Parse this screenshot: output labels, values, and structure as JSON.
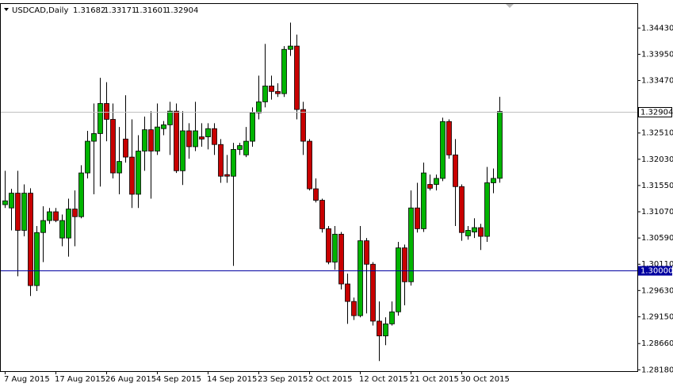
{
  "chart_data": {
    "type": "candlestick",
    "title": "USDCAD,Daily",
    "categories": [
      "7 Aug 2015",
      null,
      null,
      null,
      null,
      null,
      null,
      null,
      "17 Aug 2015",
      null,
      null,
      null,
      null,
      null,
      null,
      null,
      "26 Aug 2015",
      null,
      null,
      null,
      null,
      null,
      null,
      null,
      "4 Sep 2015",
      null,
      null,
      null,
      null,
      null,
      null,
      null,
      "14 Sep 2015",
      null,
      null,
      null,
      null,
      null,
      null,
      null,
      "23 Sep 2015",
      null,
      null,
      null,
      null,
      null,
      null,
      null,
      "2 Oct 2015",
      null,
      null,
      null,
      null,
      null,
      null,
      null,
      "12 Oct 2015",
      null,
      null,
      null,
      null,
      null,
      null,
      null,
      "21 Oct 2015",
      null,
      null,
      null,
      null,
      null,
      null,
      null,
      "30 Oct 2015",
      null,
      null,
      null,
      null,
      null,
      null
    ],
    "open": [
      1.312,
      1.3114,
      1.3141,
      1.3073,
      1.3141,
      1.2972,
      1.3069,
      1.3091,
      1.3107,
      1.3059,
      1.3059,
      1.3112,
      1.3098,
      1.3178,
      1.3236,
      1.325,
      1.3305,
      1.3276,
      1.3178,
      1.324,
      1.3207,
      1.3139,
      1.3218,
      1.3257,
      1.3218,
      1.3259,
      1.3266,
      1.3291,
      1.3182,
      1.3255,
      1.3226,
      1.3244,
      1.3244,
      1.3259,
      1.323,
      1.3175,
      1.3172,
      1.3221,
      1.3211,
      1.3236,
      1.3288,
      1.3308,
      1.3337,
      1.3327,
      1.3323,
      1.3404,
      1.341,
      1.3294,
      1.3236,
      1.3149,
      1.3128,
      1.3076,
      1.3015,
      1.3066,
      1.2975,
      1.2943,
      1.2917,
      1.3054,
      1.3011,
      1.2907,
      1.288,
      1.2902,
      1.2924,
      1.3041,
      1.2979,
      1.3114,
      1.3076,
      1.3157,
      1.3157,
      1.3168,
      1.3272,
      1.3211,
      1.3153,
      1.3063,
      1.307,
      1.3078,
      1.3062,
      1.316,
      1.31682
    ],
    "high": [
      1.3182,
      1.3149,
      1.3182,
      1.3157,
      1.315,
      1.3081,
      1.3117,
      1.3114,
      1.3114,
      1.3102,
      1.3131,
      1.3146,
      1.3192,
      1.3255,
      1.3305,
      1.3352,
      1.3344,
      1.3305,
      1.3262,
      1.332,
      1.3276,
      1.3247,
      1.3281,
      1.3291,
      1.3305,
      1.3273,
      1.3308,
      1.3305,
      1.3291,
      1.3269,
      1.3308,
      1.3269,
      1.3269,
      1.3269,
      1.324,
      1.3211,
      1.3233,
      1.3233,
      1.3262,
      1.3298,
      1.3356,
      1.3414,
      1.3356,
      1.3342,
      1.341,
      1.3453,
      1.3431,
      1.3308,
      1.324,
      1.3168,
      1.3131,
      1.3081,
      1.3081,
      1.307,
      1.2994,
      1.295,
      1.3081,
      1.3059,
      1.3015,
      1.2943,
      1.2914,
      1.2943,
      1.3052,
      1.3047,
      1.3146,
      1.316,
      1.3197,
      1.3175,
      1.3175,
      1.3279,
      1.3276,
      1.324,
      1.3157,
      1.3081,
      1.3095,
      1.3085,
      1.3189,
      1.3186,
      1.33171
    ],
    "low": [
      1.3114,
      1.3073,
      1.2989,
      1.3062,
      1.2953,
      1.2962,
      1.3015,
      1.3085,
      1.3088,
      1.3044,
      1.3025,
      1.3044,
      1.3095,
      1.3168,
      1.3139,
      1.3153,
      1.3236,
      1.3168,
      1.3139,
      1.3197,
      1.3114,
      1.3114,
      1.3182,
      1.3131,
      1.3211,
      1.3247,
      1.3211,
      1.3178,
      1.3156,
      1.3204,
      1.3218,
      1.3226,
      1.3221,
      1.3211,
      1.316,
      1.316,
      1.3008,
      1.3211,
      1.3207,
      1.3226,
      1.3276,
      1.3298,
      1.3312,
      1.3317,
      1.3317,
      1.3392,
      1.3276,
      1.3211,
      1.3146,
      1.3124,
      1.3069,
      1.3011,
      1.3001,
      1.2965,
      1.2902,
      1.2909,
      1.2914,
      1.2921,
      1.2899,
      1.2834,
      1.2863,
      1.2899,
      1.2917,
      1.2936,
      1.2972,
      1.3069,
      1.307,
      1.3146,
      1.3146,
      1.3163,
      1.3204,
      1.3081,
      1.3054,
      1.3056,
      1.3059,
      1.3037,
      1.3052,
      1.3141,
      1.31601
    ],
    "close": [
      1.3127,
      1.3141,
      1.3073,
      1.3141,
      1.2972,
      1.3069,
      1.3091,
      1.3107,
      1.3091,
      1.3091,
      1.3112,
      1.3098,
      1.3178,
      1.3236,
      1.325,
      1.3305,
      1.3276,
      1.3178,
      1.3199,
      1.3207,
      1.3139,
      1.3218,
      1.3257,
      1.3218,
      1.3262,
      1.3266,
      1.3291,
      1.3182,
      1.3255,
      1.3226,
      1.3255,
      1.324,
      1.3259,
      1.323,
      1.3172,
      1.3172,
      1.3221,
      1.3228,
      1.3236,
      1.3288,
      1.3308,
      1.3337,
      1.3327,
      1.3323,
      1.3404,
      1.341,
      1.3294,
      1.3236,
      1.3149,
      1.3128,
      1.3076,
      1.3015,
      1.3066,
      1.2975,
      1.2943,
      1.2917,
      1.3054,
      1.3011,
      1.2907,
      1.288,
      1.2902,
      1.2924,
      1.3041,
      1.2979,
      1.3114,
      1.3076,
      1.3178,
      1.315,
      1.3168,
      1.3272,
      1.3211,
      1.3153,
      1.3069,
      1.3073,
      1.3078,
      1.3062,
      1.316,
      1.3168,
      1.32904
    ],
    "up_color": "#00b400",
    "down_color": "#c80000",
    "bid_line_color": "#c0c0c0",
    "ylim": [
      1.2817,
      1.3487
    ],
    "yticks": [
      {
        "value": 1.3443,
        "label": "1.34430"
      },
      {
        "value": 1.3395,
        "label": "1.33950"
      },
      {
        "value": 1.3347,
        "label": "1.33470"
      },
      {
        "value": 1.3251,
        "label": "1.32510"
      },
      {
        "value": 1.3203,
        "label": "1.32030"
      },
      {
        "value": 1.3155,
        "label": "1.31550"
      },
      {
        "value": 1.3107,
        "label": "1.31070"
      },
      {
        "value": 1.3059,
        "label": "1.30590"
      },
      {
        "value": 1.3011,
        "label": "1.30110"
      },
      {
        "value": 1.2963,
        "label": "1.29630"
      },
      {
        "value": 1.2915,
        "label": "1.29150"
      },
      {
        "value": 1.2866,
        "label": "1.28660"
      },
      {
        "value": 1.2818,
        "label": "1.28180"
      }
    ],
    "hlines": [
      {
        "value": 1.3,
        "label": "1.30000",
        "color": "#0000a0"
      }
    ]
  }
}
